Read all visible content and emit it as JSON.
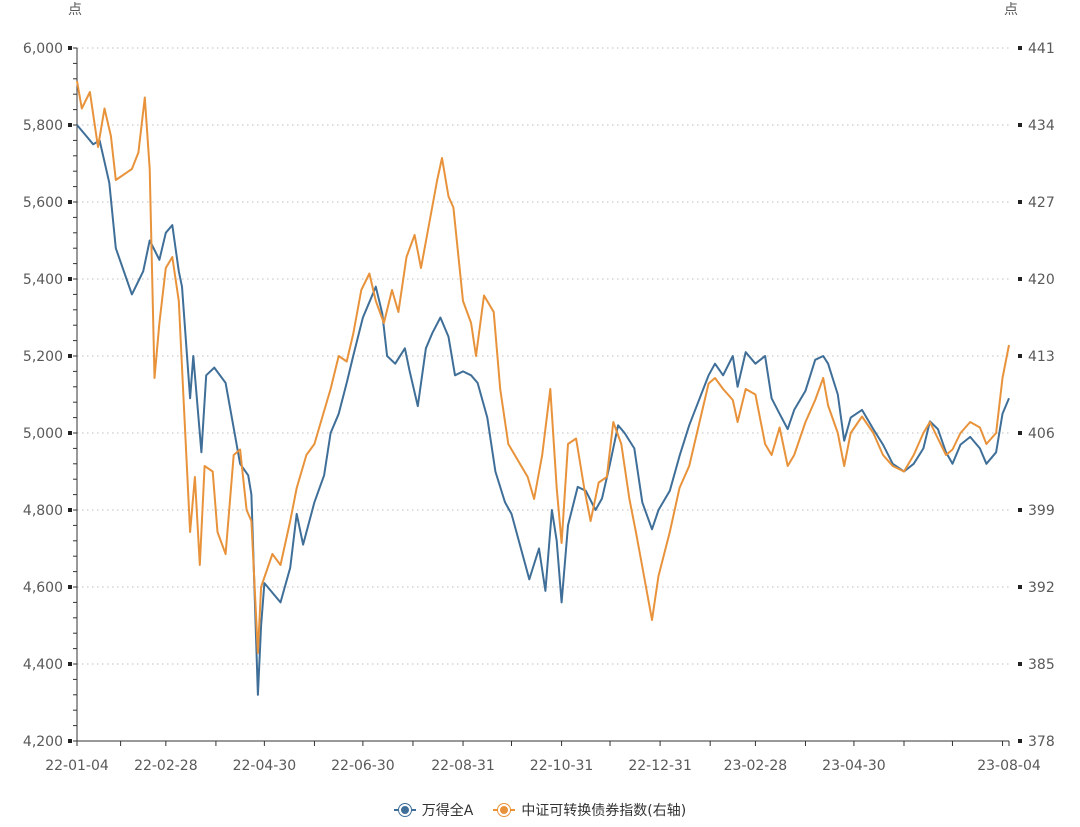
{
  "chart_data": {
    "type": "line",
    "left_unit": "点",
    "right_unit": "点",
    "x_ticks": [
      "22-01-04",
      "22-02-28",
      "22-04-30",
      "22-06-30",
      "22-08-31",
      "22-10-31",
      "22-12-31",
      "23-02-28",
      "23-04-30",
      "23-08-04"
    ],
    "y_left": {
      "min": 4200,
      "max": 6000,
      "ticks": [
        "4,200",
        "4,400",
        "4,600",
        "4,800",
        "5,000",
        "5,200",
        "5,400",
        "5,600",
        "5,800",
        "6,000"
      ]
    },
    "y_right": {
      "min": 378,
      "max": 441,
      "ticks": [
        "378",
        "385",
        "392",
        "399",
        "406",
        "413",
        "420",
        "427",
        "434",
        "441"
      ]
    },
    "grid": "horizontal-dotted",
    "legend_position": "bottom-center",
    "series": [
      {
        "name": "万得全A",
        "axis": "left",
        "color": "#3f6f98",
        "points": [
          [
            "22-01-04",
            5800
          ],
          [
            "22-01-10",
            5770
          ],
          [
            "22-01-14",
            5750
          ],
          [
            "22-01-18",
            5760
          ],
          [
            "22-01-24",
            5650
          ],
          [
            "22-01-28",
            5480
          ],
          [
            "22-02-07",
            5360
          ],
          [
            "22-02-14",
            5420
          ],
          [
            "22-02-18",
            5500
          ],
          [
            "22-02-24",
            5450
          ],
          [
            "22-02-28",
            5520
          ],
          [
            "22-03-04",
            5540
          ],
          [
            "22-03-08",
            5420
          ],
          [
            "22-03-10",
            5380
          ],
          [
            "22-03-15",
            5090
          ],
          [
            "22-03-17",
            5200
          ],
          [
            "22-03-22",
            4950
          ],
          [
            "22-03-25",
            5150
          ],
          [
            "22-03-30",
            5170
          ],
          [
            "22-04-06",
            5130
          ],
          [
            "22-04-12",
            4990
          ],
          [
            "22-04-15",
            4920
          ],
          [
            "22-04-20",
            4890
          ],
          [
            "22-04-22",
            4840
          ],
          [
            "22-04-26",
            4320
          ],
          [
            "22-04-28",
            4500
          ],
          [
            "22-04-30",
            4610
          ],
          [
            "22-05-10",
            4560
          ],
          [
            "22-05-16",
            4650
          ],
          [
            "22-05-20",
            4790
          ],
          [
            "22-05-24",
            4710
          ],
          [
            "22-05-31",
            4820
          ],
          [
            "22-06-06",
            4890
          ],
          [
            "22-06-10",
            5000
          ],
          [
            "22-06-15",
            5050
          ],
          [
            "22-06-20",
            5130
          ],
          [
            "22-06-24",
            5200
          ],
          [
            "22-06-30",
            5300
          ],
          [
            "22-07-05",
            5350
          ],
          [
            "22-07-08",
            5380
          ],
          [
            "22-07-12",
            5310
          ],
          [
            "22-07-15",
            5200
          ],
          [
            "22-07-20",
            5180
          ],
          [
            "22-07-26",
            5220
          ],
          [
            "22-07-29",
            5160
          ],
          [
            "22-08-03",
            5070
          ],
          [
            "22-08-08",
            5220
          ],
          [
            "22-08-12",
            5260
          ],
          [
            "22-08-17",
            5300
          ],
          [
            "22-08-22",
            5250
          ],
          [
            "22-08-26",
            5150
          ],
          [
            "22-08-31",
            5160
          ],
          [
            "22-09-05",
            5150
          ],
          [
            "22-09-09",
            5130
          ],
          [
            "22-09-15",
            5040
          ],
          [
            "22-09-20",
            4900
          ],
          [
            "22-09-26",
            4820
          ],
          [
            "22-09-30",
            4790
          ],
          [
            "22-10-11",
            4620
          ],
          [
            "22-10-17",
            4700
          ],
          [
            "22-10-21",
            4590
          ],
          [
            "22-10-25",
            4800
          ],
          [
            "22-10-28",
            4720
          ],
          [
            "22-10-31",
            4560
          ],
          [
            "22-11-04",
            4760
          ],
          [
            "22-11-10",
            4860
          ],
          [
            "22-11-15",
            4850
          ],
          [
            "22-11-21",
            4800
          ],
          [
            "22-11-25",
            4830
          ],
          [
            "22-11-30",
            4920
          ],
          [
            "22-12-05",
            5020
          ],
          [
            "22-12-09",
            5000
          ],
          [
            "22-12-15",
            4960
          ],
          [
            "22-12-20",
            4820
          ],
          [
            "22-12-26",
            4750
          ],
          [
            "22-12-30",
            4800
          ],
          [
            "23-01-06",
            4850
          ],
          [
            "23-01-12",
            4940
          ],
          [
            "23-01-18",
            5020
          ],
          [
            "23-01-30",
            5150
          ],
          [
            "23-02-03",
            5180
          ],
          [
            "23-02-08",
            5150
          ],
          [
            "23-02-14",
            5200
          ],
          [
            "23-02-17",
            5120
          ],
          [
            "23-02-22",
            5210
          ],
          [
            "23-02-28",
            5180
          ],
          [
            "23-03-06",
            5200
          ],
          [
            "23-03-10",
            5090
          ],
          [
            "23-03-15",
            5050
          ],
          [
            "23-03-20",
            5010
          ],
          [
            "23-03-24",
            5060
          ],
          [
            "23-03-31",
            5110
          ],
          [
            "23-04-06",
            5190
          ],
          [
            "23-04-11",
            5200
          ],
          [
            "23-04-14",
            5180
          ],
          [
            "23-04-20",
            5100
          ],
          [
            "23-04-24",
            4980
          ],
          [
            "23-04-28",
            5040
          ],
          [
            "23-05-05",
            5060
          ],
          [
            "23-05-12",
            5010
          ],
          [
            "23-05-18",
            4970
          ],
          [
            "23-05-24",
            4920
          ],
          [
            "23-05-31",
            4900
          ],
          [
            "23-06-06",
            4920
          ],
          [
            "23-06-12",
            4960
          ],
          [
            "23-06-16",
            5030
          ],
          [
            "23-06-21",
            5010
          ],
          [
            "23-06-26",
            4950
          ],
          [
            "23-06-30",
            4920
          ],
          [
            "23-07-05",
            4970
          ],
          [
            "23-07-11",
            4990
          ],
          [
            "23-07-17",
            4960
          ],
          [
            "23-07-21",
            4920
          ],
          [
            "23-07-27",
            4950
          ],
          [
            "23-07-31",
            5050
          ],
          [
            "23-08-04",
            5090
          ]
        ]
      },
      {
        "name": "中证可转换债券指数(右轴)",
        "axis": "right",
        "color": "#e8933b",
        "points": [
          [
            "22-01-04",
            438.0
          ],
          [
            "22-01-07",
            435.5
          ],
          [
            "22-01-12",
            437.0
          ],
          [
            "22-01-17",
            432.0
          ],
          [
            "22-01-21",
            435.5
          ],
          [
            "22-01-25",
            433.0
          ],
          [
            "22-01-28",
            429.0
          ],
          [
            "22-02-07",
            430.0
          ],
          [
            "22-02-11",
            431.5
          ],
          [
            "22-02-15",
            436.5
          ],
          [
            "22-02-18",
            430.0
          ],
          [
            "22-02-21",
            411.0
          ],
          [
            "22-02-24",
            416.0
          ],
          [
            "22-02-28",
            421.0
          ],
          [
            "22-03-04",
            422.0
          ],
          [
            "22-03-08",
            418.0
          ],
          [
            "22-03-11",
            409.0
          ],
          [
            "22-03-15",
            397.0
          ],
          [
            "22-03-18",
            402.0
          ],
          [
            "22-03-21",
            394.0
          ],
          [
            "22-03-24",
            403.0
          ],
          [
            "22-03-29",
            402.5
          ],
          [
            "22-04-01",
            397.0
          ],
          [
            "22-04-06",
            395.0
          ],
          [
            "22-04-11",
            404.0
          ],
          [
            "22-04-15",
            404.5
          ],
          [
            "22-04-19",
            399.0
          ],
          [
            "22-04-22",
            398.0
          ],
          [
            "22-04-26",
            386.0
          ],
          [
            "22-04-28",
            392.0
          ],
          [
            "22-05-05",
            395.0
          ],
          [
            "22-05-10",
            394.0
          ],
          [
            "22-05-16",
            398.0
          ],
          [
            "22-05-20",
            401.0
          ],
          [
            "22-05-26",
            404.0
          ],
          [
            "22-05-31",
            405.0
          ],
          [
            "22-06-06",
            408.0
          ],
          [
            "22-06-10",
            410.0
          ],
          [
            "22-06-15",
            413.0
          ],
          [
            "22-06-20",
            412.5
          ],
          [
            "22-06-24",
            415.0
          ],
          [
            "22-06-29",
            419.0
          ],
          [
            "22-07-04",
            420.5
          ],
          [
            "22-07-08",
            418.0
          ],
          [
            "22-07-13",
            416.0
          ],
          [
            "22-07-18",
            419.0
          ],
          [
            "22-07-22",
            417.0
          ],
          [
            "22-07-27",
            422.0
          ],
          [
            "22-08-01",
            424.0
          ],
          [
            "22-08-05",
            421.0
          ],
          [
            "22-08-10",
            425.0
          ],
          [
            "22-08-15",
            429.0
          ],
          [
            "22-08-18",
            431.0
          ],
          [
            "22-08-22",
            427.5
          ],
          [
            "22-08-25",
            426.5
          ],
          [
            "22-08-31",
            418.0
          ],
          [
            "22-09-05",
            416.0
          ],
          [
            "22-09-08",
            413.0
          ],
          [
            "22-09-13",
            418.5
          ],
          [
            "22-09-19",
            417.0
          ],
          [
            "22-09-23",
            410.0
          ],
          [
            "22-09-28",
            405.0
          ],
          [
            "22-10-10",
            402.0
          ],
          [
            "22-10-14",
            400.0
          ],
          [
            "22-10-19",
            404.0
          ],
          [
            "22-10-24",
            410.0
          ],
          [
            "22-10-28",
            401.0
          ],
          [
            "22-10-31",
            396.0
          ],
          [
            "22-11-04",
            405.0
          ],
          [
            "22-11-09",
            405.5
          ],
          [
            "22-11-14",
            401.0
          ],
          [
            "22-11-18",
            398.0
          ],
          [
            "22-11-23",
            401.5
          ],
          [
            "22-11-28",
            402.0
          ],
          [
            "22-12-02",
            407.0
          ],
          [
            "22-12-07",
            405.0
          ],
          [
            "22-12-12",
            400.0
          ],
          [
            "22-12-16",
            397.0
          ],
          [
            "22-12-21",
            393.0
          ],
          [
            "22-12-26",
            389.0
          ],
          [
            "22-12-30",
            393.0
          ],
          [
            "23-01-06",
            397.0
          ],
          [
            "23-01-12",
            401.0
          ],
          [
            "23-01-18",
            403.0
          ],
          [
            "23-01-30",
            410.5
          ],
          [
            "23-02-03",
            411.0
          ],
          [
            "23-02-08",
            410.0
          ],
          [
            "23-02-14",
            409.0
          ],
          [
            "23-02-17",
            407.0
          ],
          [
            "23-02-22",
            410.0
          ],
          [
            "23-02-28",
            409.5
          ],
          [
            "23-03-06",
            405.0
          ],
          [
            "23-03-10",
            404.0
          ],
          [
            "23-03-15",
            406.5
          ],
          [
            "23-03-20",
            403.0
          ],
          [
            "23-03-24",
            404.0
          ],
          [
            "23-03-31",
            407.0
          ],
          [
            "23-04-06",
            409.0
          ],
          [
            "23-04-11",
            411.0
          ],
          [
            "23-04-14",
            408.5
          ],
          [
            "23-04-20",
            406.0
          ],
          [
            "23-04-24",
            403.0
          ],
          [
            "23-04-28",
            406.0
          ],
          [
            "23-05-05",
            407.5
          ],
          [
            "23-05-12",
            406.0
          ],
          [
            "23-05-18",
            404.0
          ],
          [
            "23-05-24",
            403.0
          ],
          [
            "23-05-31",
            402.5
          ],
          [
            "23-06-06",
            404.0
          ],
          [
            "23-06-12",
            406.0
          ],
          [
            "23-06-16",
            407.0
          ],
          [
            "23-06-21",
            405.5
          ],
          [
            "23-06-26",
            404.0
          ],
          [
            "23-06-30",
            404.5
          ],
          [
            "23-07-05",
            406.0
          ],
          [
            "23-07-11",
            407.0
          ],
          [
            "23-07-17",
            406.5
          ],
          [
            "23-07-21",
            405.0
          ],
          [
            "23-07-27",
            406.0
          ],
          [
            "23-07-31",
            411.0
          ],
          [
            "23-08-04",
            414.0
          ]
        ]
      }
    ]
  }
}
